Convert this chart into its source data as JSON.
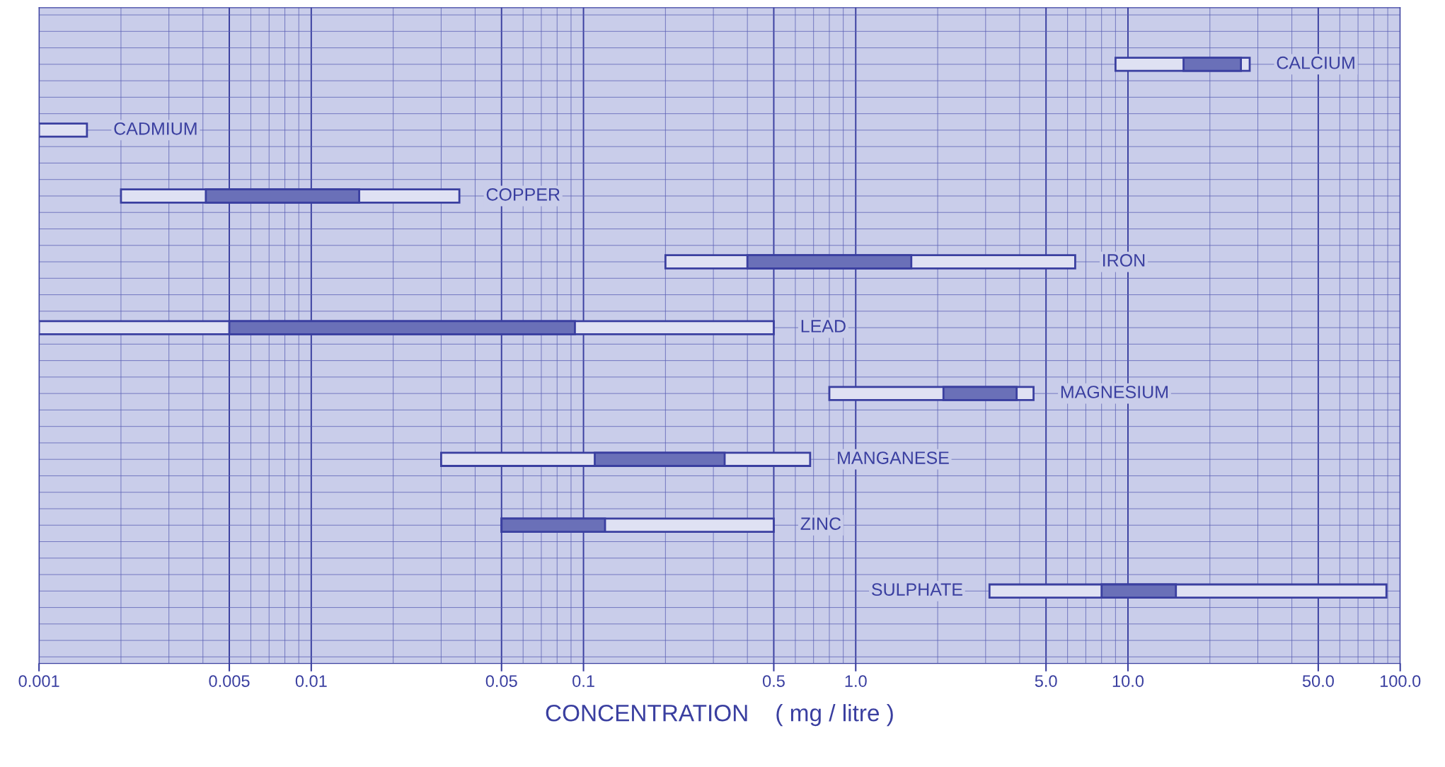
{
  "chart_data": {
    "type": "bar",
    "orientation": "horizontal",
    "xlabel": "CONCENTRATION    ( mg / litre )",
    "categories": [
      "CALCIUM",
      "CADMIUM",
      "COPPER",
      "IRON",
      "LEAD",
      "MAGNESIUM",
      "MANGANESE",
      "ZINC",
      "SULPHATE"
    ],
    "series": [
      {
        "color": "#dfe1f3",
        "base": [
          9,
          0.001,
          0.002,
          0.2,
          0.001,
          0.8,
          0.03,
          0.05,
          3.1
        ],
        "values": [
          19,
          0.0005,
          0.033,
          6.2,
          0.499,
          3.7,
          0.65,
          0.45,
          85.9
        ]
      },
      {
        "color": "#6a70b8",
        "base": [
          16,
          null,
          0.0041,
          0.4,
          0.005,
          2.1,
          0.11,
          0.05,
          8
        ],
        "values": [
          10,
          null,
          0.0109,
          1.2,
          0.088,
          1.8,
          0.22,
          0.07,
          7
        ]
      }
    ],
    "log": "x",
    "xlim": [
      0.001,
      100.0
    ],
    "xticks": [
      0.001,
      0.005,
      0.01,
      0.05,
      0.1,
      0.5,
      {
        "value": 1.0,
        "label": "1.0"
      },
      {
        "value": 5.0,
        "label": "5.0"
      },
      {
        "value": 10.0,
        "label": "10.0"
      },
      {
        "value": 50.0,
        "label": "50.0"
      },
      {
        "value": 100.0,
        "label": "100.0"
      }
    ],
    "tick_labels": "x",
    "grid": true
  }
}
